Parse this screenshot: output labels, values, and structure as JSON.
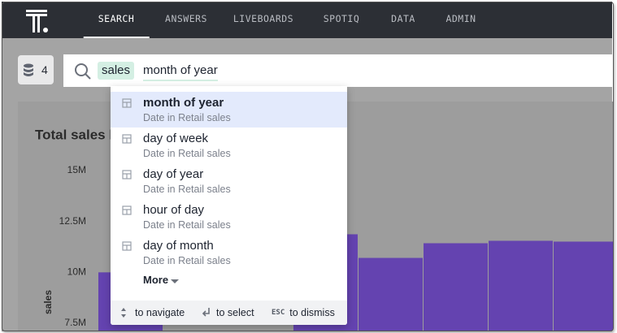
{
  "nav": {
    "items": [
      "SEARCH",
      "ANSWERS",
      "LIVEBOARDS",
      "SPOTIQ",
      "DATA",
      "ADMIN"
    ],
    "active": 0
  },
  "source_count": 4,
  "search": {
    "token": "sales",
    "query": "month of year"
  },
  "suggestions": {
    "items": [
      {
        "title": "month of year",
        "subtitle": "Date in Retail sales"
      },
      {
        "title": "day of week",
        "subtitle": "Date in Retail sales"
      },
      {
        "title": "day of year",
        "subtitle": "Date in Retail sales"
      },
      {
        "title": "hour of day",
        "subtitle": "Date in Retail sales"
      },
      {
        "title": "day of month",
        "subtitle": "Date in Retail sales"
      }
    ],
    "highlighted": 0,
    "more": "More"
  },
  "footer": {
    "hints": [
      {
        "text": "to navigate"
      },
      {
        "text": "to select"
      },
      {
        "key": "ESC",
        "text": "to dismiss"
      }
    ]
  },
  "chart_data": {
    "type": "bar",
    "title": "Total sales b",
    "y_label": "sales",
    "categories": [
      null,
      null,
      null,
      null,
      null,
      null,
      null,
      null
    ],
    "values": [
      10000000,
      null,
      null,
      11870000,
      10710000,
      11430000,
      11550000,
      11510000
    ],
    "color": "#6443b0",
    "ylim": [
      7500000,
      15000000
    ],
    "yticks": [
      {
        "value": 15000000,
        "label": "15M"
      },
      {
        "value": 12500000,
        "label": "12.5M"
      },
      {
        "value": 10000000,
        "label": "10M"
      },
      {
        "value": 7500000,
        "label": "7.5M"
      }
    ]
  }
}
